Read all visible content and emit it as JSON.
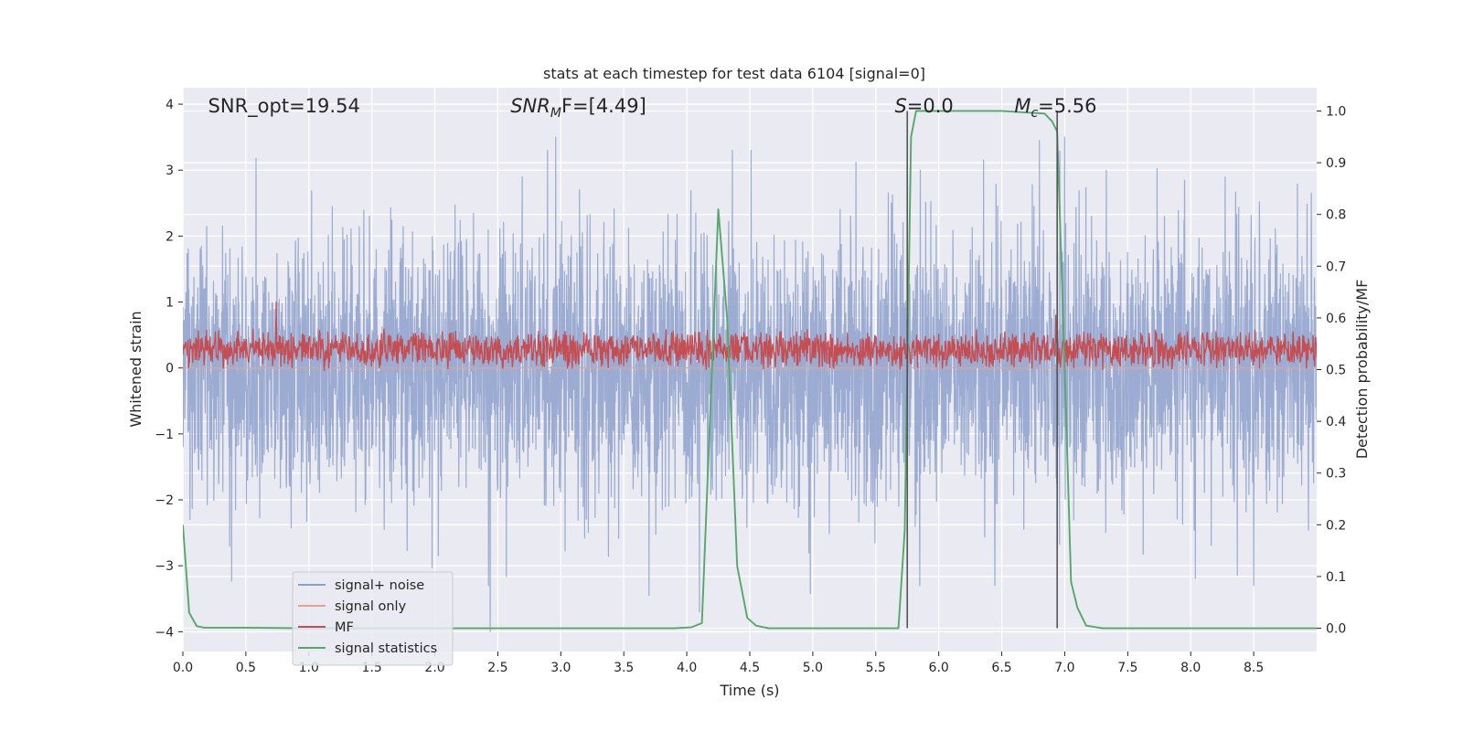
{
  "chart_data": {
    "type": "line",
    "title": "stats at each timestep for test data 6104 [signal=0]",
    "xlabel": "Time (s)",
    "ylabel": "Whitened strain",
    "y2label": "Detection probability/MF",
    "xlim": [
      0,
      9.0
    ],
    "ylim": [
      -4.3,
      4.25
    ],
    "y2lim": [
      -0.045,
      1.045
    ],
    "xticks": [
      "0.0",
      "0.5",
      "1.0",
      "1.5",
      "2.0",
      "2.5",
      "3.0",
      "3.5",
      "4.0",
      "4.5",
      "5.0",
      "5.5",
      "6.0",
      "6.5",
      "7.0",
      "7.5",
      "8.0",
      "8.5"
    ],
    "yticks": [
      "4",
      "3",
      "2",
      "1",
      "0",
      "−1",
      "−2",
      "−3",
      "−4"
    ],
    "y2ticks": [
      "1.0",
      "0.9",
      "0.8",
      "0.7",
      "0.6",
      "0.5",
      "0.4",
      "0.3",
      "0.2",
      "0.1",
      "0.0"
    ],
    "grid": true,
    "legend_position": "lower-left",
    "annotations": [
      {
        "text": "SNR_opt=19.54",
        "x": 0.2
      },
      {
        "text_base": "SNR",
        "text_sub": "M",
        "text_rest": "F=[4.49]",
        "x": 2.6
      },
      {
        "text_base": "S",
        "text_rest": "=0.0",
        "x": 5.65
      },
      {
        "text_base": "M",
        "text_sub": "c",
        "text_rest": "=5.56",
        "x": 6.6
      }
    ],
    "vlines": [
      {
        "x": 5.75,
        "y2_from": 0.0,
        "y2_to": 1.0,
        "color": "#555555"
      },
      {
        "x": 6.94,
        "y2_from": 0.0,
        "y2_to": 1.0,
        "color": "#555555"
      }
    ],
    "series": [
      {
        "name": "signal+ noise",
        "color": "#8da0cb",
        "axis": "left",
        "noise": {
          "sigma": 1.0,
          "seed": 6104,
          "samples": 4000
        },
        "peaks": [
          {
            "x": 0.58,
            "y": 3.18
          },
          {
            "x": 2.44,
            "y": -4.0
          },
          {
            "x": 2.96,
            "y": 3.5
          },
          {
            "x": 4.1,
            "y": -3.7
          },
          {
            "x": 6.8,
            "y": 3.45
          },
          {
            "x": 7.0,
            "y": 3.5
          },
          {
            "x": 8.5,
            "y": -3.3
          },
          {
            "x": 3.7,
            "y": -3.45
          },
          {
            "x": 4.98,
            "y": -3.42
          }
        ]
      },
      {
        "name": "signal only",
        "color": "#e5a38a",
        "axis": "left",
        "x": [
          0,
          9.0
        ],
        "y": [
          0,
          0
        ]
      },
      {
        "name": "MF",
        "color": "#c44e52",
        "axis": "left",
        "noise": {
          "baseline": 0.28,
          "amplitude": 0.32,
          "seed": 77,
          "samples": 2200
        },
        "peaks": [
          {
            "x": 0.74,
            "y": 1.0
          },
          {
            "x": 6.93,
            "y": 0.8
          }
        ]
      },
      {
        "name": "signal statistics",
        "color": "#55a868",
        "axis": "right",
        "x": [
          0.0,
          0.05,
          0.11,
          0.17,
          0.5,
          1.0,
          2.0,
          3.0,
          3.9,
          4.04,
          4.12,
          4.25,
          4.32,
          4.4,
          4.48,
          4.55,
          4.65,
          5.0,
          5.5,
          5.68,
          5.73,
          5.78,
          5.82,
          6.0,
          6.5,
          6.84,
          6.9,
          6.94,
          7.0,
          7.05,
          7.1,
          7.17,
          7.3,
          8.0,
          9.0
        ],
        "y": [
          0.2,
          0.03,
          0.004,
          0.001,
          0.001,
          0.0,
          0.0,
          0.0,
          0.0,
          0.002,
          0.01,
          0.81,
          0.6,
          0.12,
          0.02,
          0.005,
          0.0,
          0.0,
          0.0,
          0.0,
          0.19,
          0.95,
          1.0,
          1.0,
          1.0,
          0.995,
          0.98,
          0.96,
          0.5,
          0.09,
          0.04,
          0.005,
          0.0,
          0.0,
          0.0
        ]
      }
    ]
  }
}
